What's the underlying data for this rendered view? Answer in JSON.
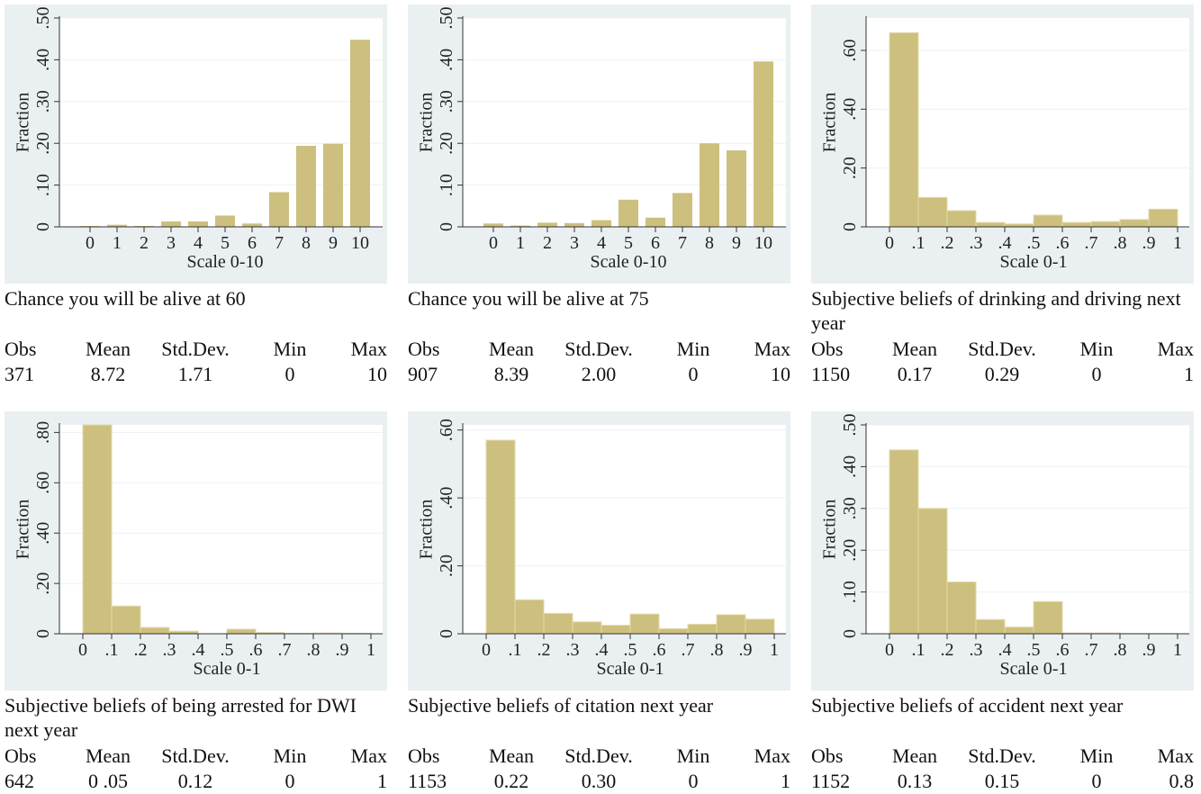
{
  "chart_data": [
    {
      "type": "bar",
      "caption": "Chance you will be alive at 60",
      "xlabel": "Scale 0-10",
      "ylabel": "Fraction",
      "color": "#cdbf7d",
      "grid": true,
      "categories": [
        "0",
        "1",
        "2",
        "3",
        "4",
        "5",
        "6",
        "7",
        "8",
        "9",
        "10"
      ],
      "values": [
        0.002,
        0.005,
        0.002,
        0.013,
        0.013,
        0.027,
        0.008,
        0.083,
        0.194,
        0.199,
        0.448
      ],
      "ylim": [
        0,
        0.5
      ],
      "yticks": [
        0,
        {
          "value": 0.1,
          "label": ".10"
        },
        {
          "value": 0.2,
          "label": ".20"
        },
        {
          "value": 0.3,
          "label": ".30"
        },
        {
          "value": 0.4,
          "label": ".40"
        },
        {
          "value": 0.5,
          "label": ".50"
        }
      ],
      "stats": {
        "headers": [
          "Obs",
          "Mean",
          "Std.Dev.",
          "Min",
          "Max"
        ],
        "values": [
          "371",
          "8.72",
          "1.71",
          "0",
          "10"
        ]
      }
    },
    {
      "type": "bar",
      "caption": "Chance you will be alive at 75",
      "xlabel": "Scale 0-10",
      "ylabel": "Fraction",
      "color": "#cdbf7d",
      "grid": true,
      "categories": [
        "0",
        "1",
        "2",
        "3",
        "4",
        "5",
        "6",
        "7",
        "8",
        "9",
        "10"
      ],
      "values": [
        0.008,
        0.003,
        0.01,
        0.009,
        0.016,
        0.065,
        0.022,
        0.081,
        0.2,
        0.183,
        0.396
      ],
      "ylim": [
        0,
        0.5
      ],
      "yticks": [
        0,
        {
          "value": 0.1,
          "label": ".10"
        },
        {
          "value": 0.2,
          "label": ".20"
        },
        {
          "value": 0.3,
          "label": ".30"
        },
        {
          "value": 0.4,
          "label": ".40"
        },
        {
          "value": 0.5,
          "label": ".50"
        }
      ],
      "stats": {
        "headers": [
          "Obs",
          "Mean",
          "Std.Dev.",
          "Min",
          "Max"
        ],
        "values": [
          "907",
          "8.39",
          "2.00",
          "0",
          "10"
        ]
      }
    },
    {
      "type": "histogram",
      "caption": "Subjective beliefs of drinking and driving next year",
      "xlabel": "Scale 0-1",
      "ylabel": "Fraction",
      "color": "#cdbf7d",
      "grid": true,
      "bins": [
        0,
        0.1,
        0.2,
        0.3,
        0.4,
        0.5,
        0.6,
        0.7,
        0.8,
        0.9,
        1
      ],
      "values": [
        0.66,
        0.1,
        0.055,
        0.015,
        0.01,
        0.04,
        0.015,
        0.018,
        0.025,
        0.06
      ],
      "xlim": [
        0,
        1
      ],
      "xticks": [
        0,
        {
          "value": 0.1,
          "label": ".1"
        },
        {
          "value": 0.2,
          "label": ".2"
        },
        {
          "value": 0.3,
          "label": ".3"
        },
        {
          "value": 0.4,
          "label": ".4"
        },
        {
          "value": 0.5,
          "label": ".5"
        },
        {
          "value": 0.6,
          "label": ".6"
        },
        {
          "value": 0.7,
          "label": ".7"
        },
        {
          "value": 0.8,
          "label": ".8"
        },
        {
          "value": 0.9,
          "label": ".9"
        },
        1
      ],
      "ylim": [
        0,
        0.71
      ],
      "yticks": [
        0,
        {
          "value": 0.2,
          "label": ".20"
        },
        {
          "value": 0.4,
          "label": ".40"
        },
        {
          "value": 0.6,
          "label": ".60"
        }
      ],
      "stats": {
        "headers": [
          "Obs",
          "Mean",
          "Std.Dev.",
          "Min",
          "Max"
        ],
        "values": [
          "1150",
          "0.17",
          "0.29",
          "0",
          "1"
        ]
      }
    },
    {
      "type": "histogram",
      "caption": "Subjective beliefs of being arrested for DWI next year",
      "xlabel": "Scale 0-1",
      "ylabel": "Fraction",
      "color": "#cdbf7d",
      "grid": true,
      "bins": [
        0,
        0.1,
        0.2,
        0.3,
        0.4,
        0.5,
        0.6,
        0.7,
        0.8,
        0.9,
        1
      ],
      "values": [
        0.83,
        0.11,
        0.025,
        0.01,
        0,
        0.018,
        0.005,
        0.002,
        0.003,
        0.002
      ],
      "xlim": [
        0,
        1
      ],
      "xticks": [
        0,
        {
          "value": 0.1,
          "label": ".1"
        },
        {
          "value": 0.2,
          "label": ".2"
        },
        {
          "value": 0.3,
          "label": ".3"
        },
        {
          "value": 0.4,
          "label": ".4"
        },
        {
          "value": 0.5,
          "label": ".5"
        },
        {
          "value": 0.6,
          "label": ".6"
        },
        {
          "value": 0.7,
          "label": ".7"
        },
        {
          "value": 0.8,
          "label": ".8"
        },
        {
          "value": 0.9,
          "label": ".9"
        },
        1
      ],
      "ylim": [
        0,
        0.83
      ],
      "yticks": [
        0,
        {
          "value": 0.2,
          "label": ".20"
        },
        {
          "value": 0.4,
          "label": ".40"
        },
        {
          "value": 0.6,
          "label": ".60"
        },
        {
          "value": 0.8,
          "label": ".80"
        }
      ],
      "stats": {
        "headers": [
          "Obs",
          "Mean",
          "Std.Dev.",
          "Min",
          "Max"
        ],
        "values": [
          "642",
          "0 .05",
          "0.12",
          "0",
          "1"
        ]
      }
    },
    {
      "type": "histogram",
      "caption": "Subjective beliefs of citation next year",
      "xlabel": "Scale 0-1",
      "ylabel": "Fraction",
      "color": "#cdbf7d",
      "grid": true,
      "bins": [
        0,
        0.1,
        0.2,
        0.3,
        0.4,
        0.5,
        0.6,
        0.7,
        0.8,
        0.9,
        1
      ],
      "values": [
        0.57,
        0.1,
        0.06,
        0.035,
        0.025,
        0.058,
        0.015,
        0.028,
        0.056,
        0.043
      ],
      "xlim": [
        0,
        1
      ],
      "xticks": [
        0,
        {
          "value": 0.1,
          "label": ".1"
        },
        {
          "value": 0.2,
          "label": ".2"
        },
        {
          "value": 0.3,
          "label": ".3"
        },
        {
          "value": 0.4,
          "label": ".4"
        },
        {
          "value": 0.5,
          "label": ".5"
        },
        {
          "value": 0.6,
          "label": ".6"
        },
        {
          "value": 0.7,
          "label": ".7"
        },
        {
          "value": 0.8,
          "label": ".8"
        },
        {
          "value": 0.9,
          "label": ".9"
        },
        1
      ],
      "ylim": [
        0,
        0.615
      ],
      "yticks": [
        0,
        {
          "value": 0.2,
          "label": ".20"
        },
        {
          "value": 0.4,
          "label": ".40"
        },
        {
          "value": 0.6,
          "label": ".60"
        }
      ],
      "stats": {
        "headers": [
          "Obs",
          "Mean",
          "Std.Dev.",
          "Min",
          "Max"
        ],
        "values": [
          "1153",
          "0.22",
          "0.30",
          "0",
          "1"
        ]
      }
    },
    {
      "type": "histogram",
      "caption": "Subjective beliefs of accident next year",
      "xlabel": "Scale 0-1",
      "ylabel": "Fraction",
      "color": "#cdbf7d",
      "grid": true,
      "bins": [
        0,
        0.1,
        0.2,
        0.3,
        0.4,
        0.5,
        0.6,
        0.7,
        0.8,
        0.9,
        1
      ],
      "values": [
        0.44,
        0.3,
        0.124,
        0.034,
        0.016,
        0.077,
        0.002,
        0.002,
        0.0005,
        0.0005
      ],
      "xlim": [
        0,
        1
      ],
      "xticks": [
        0,
        {
          "value": 0.1,
          "label": ".1"
        },
        {
          "value": 0.2,
          "label": ".2"
        },
        {
          "value": 0.3,
          "label": ".3"
        },
        {
          "value": 0.4,
          "label": ".4"
        },
        {
          "value": 0.5,
          "label": ".5"
        },
        {
          "value": 0.6,
          "label": ".6"
        },
        {
          "value": 0.7,
          "label": ".7"
        },
        {
          "value": 0.8,
          "label": ".8"
        },
        {
          "value": 0.9,
          "label": ".9"
        },
        1
      ],
      "ylim": [
        0,
        0.5
      ],
      "yticks": [
        0,
        {
          "value": 0.1,
          "label": ".10"
        },
        {
          "value": 0.2,
          "label": ".20"
        },
        {
          "value": 0.3,
          "label": ".30"
        },
        {
          "value": 0.4,
          "label": ".40"
        },
        {
          "value": 0.5,
          "label": ".50"
        }
      ],
      "stats": {
        "headers": [
          "Obs",
          "Mean",
          "Std.Dev.",
          "Min",
          "Max"
        ],
        "values": [
          "1152",
          "0.13",
          "0.15",
          "0",
          "0.8"
        ]
      }
    }
  ]
}
